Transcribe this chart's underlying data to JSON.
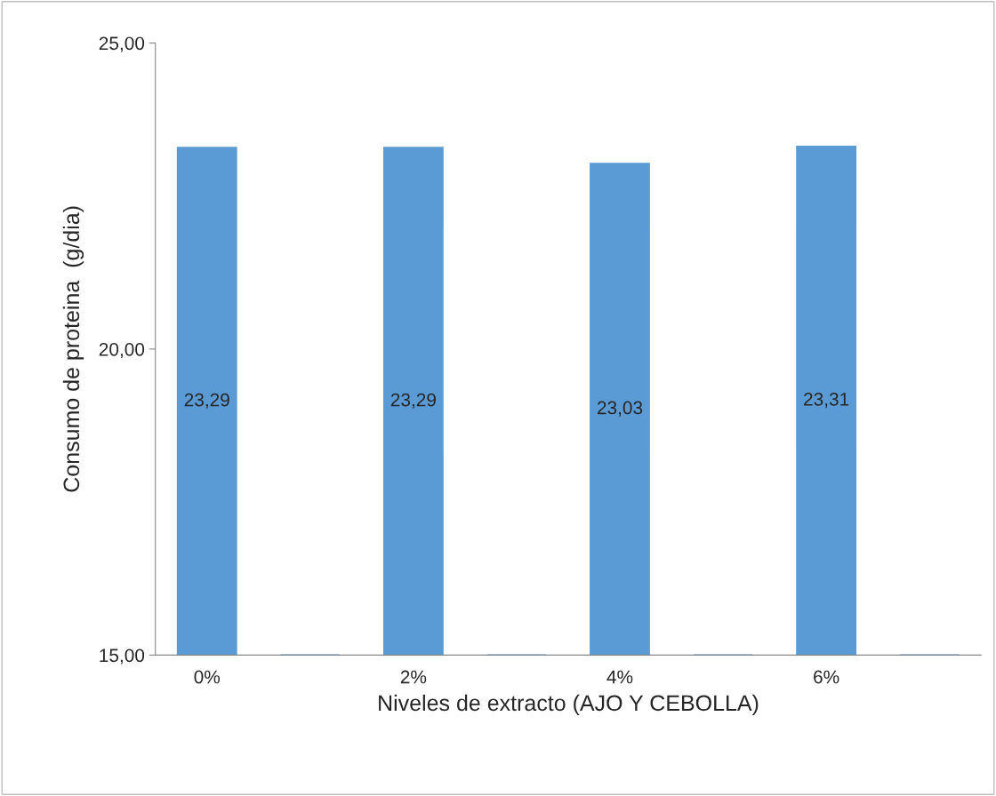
{
  "chart_data": {
    "type": "bar",
    "xlabel": "Niveles de extracto (AJO Y CEBOLLA)",
    "ylabel": "Consumo de proteina  (g/dia)",
    "categories": [
      "0%",
      null,
      "2%",
      null,
      "4%",
      null,
      "6%",
      null
    ],
    "values": [
      23.29,
      null,
      23.29,
      null,
      23.03,
      null,
      23.31,
      null
    ],
    "value_labels": [
      "23,29",
      null,
      "23,29",
      null,
      "23,03",
      null,
      "23,31",
      null
    ],
    "color": "#5b9bd5",
    "ylim": [
      15,
      25
    ],
    "yticks": [
      {
        "value": 15,
        "label": "15,00"
      },
      {
        "value": 20,
        "label": "20,00"
      },
      {
        "value": 25,
        "label": "25,00"
      }
    ],
    "grid": false,
    "legend": false
  }
}
